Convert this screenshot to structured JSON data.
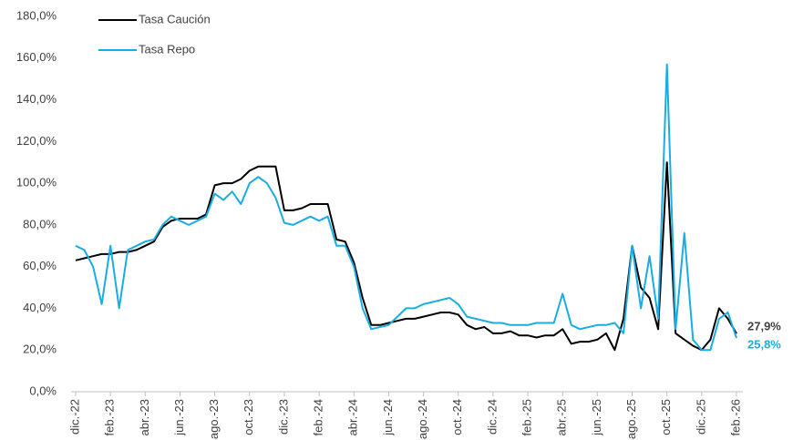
{
  "chart_data": {
    "type": "line",
    "x": [
      "dic.-22",
      null,
      null,
      null,
      "feb.-23",
      null,
      null,
      null,
      "abr.-23",
      null,
      null,
      null,
      "jun.-23",
      null,
      null,
      null,
      "ago.-23",
      null,
      null,
      null,
      "oct.-23",
      null,
      null,
      null,
      "dic.-23",
      null,
      null,
      null,
      "feb.-24",
      null,
      null,
      null,
      "abr.-24",
      null,
      null,
      null,
      "jun.-24",
      null,
      null,
      null,
      "ago.-24",
      null,
      null,
      null,
      "oct.-24",
      null,
      null,
      null,
      "dic.-24",
      null,
      null,
      null,
      "feb.-25",
      null,
      null,
      null,
      "abr.-25",
      null,
      null,
      null,
      "jun.-25",
      null,
      null,
      null,
      "ago.-25",
      null,
      null,
      null,
      "oct.-25",
      null,
      null,
      null,
      "dic.-25",
      null,
      null,
      null,
      "feb.-26"
    ],
    "series": [
      {
        "name": "Tasa Caución",
        "color": "#000000",
        "values": [
          63,
          64,
          65,
          66,
          66,
          67,
          67,
          68,
          70,
          72,
          79,
          82,
          83,
          83,
          83,
          85,
          99,
          100,
          100,
          102,
          106,
          108,
          108,
          108,
          87,
          87,
          88,
          90,
          90,
          90,
          73,
          72,
          62,
          45,
          32,
          32,
          33,
          34,
          35,
          35,
          36,
          37,
          38,
          38,
          37,
          32,
          30,
          31,
          28,
          28,
          29,
          27,
          27,
          26,
          27,
          27,
          30,
          23,
          24,
          24,
          25,
          28,
          20,
          35,
          70,
          50,
          45,
          30,
          110,
          28,
          25,
          22,
          20,
          25,
          40,
          35,
          27.9
        ],
        "value_labels": [
          null,
          null,
          null,
          null,
          null,
          null,
          null,
          null,
          null,
          null,
          null,
          null,
          null,
          null,
          null,
          null,
          null,
          null,
          null,
          null,
          null,
          null,
          null,
          null,
          null,
          null,
          null,
          null,
          null,
          null,
          null,
          null,
          null,
          null,
          null,
          null,
          null,
          null,
          null,
          null,
          null,
          null,
          null,
          null,
          null,
          null,
          null,
          null,
          null,
          null,
          null,
          null,
          null,
          null,
          null,
          null,
          null,
          null,
          null,
          null,
          null,
          null,
          null,
          null,
          null,
          null,
          null,
          null,
          null,
          null,
          null,
          null,
          null,
          null,
          null,
          null,
          "27,9%"
        ]
      },
      {
        "name": "Tasa Repo",
        "color": "#19ade3",
        "values": [
          70,
          68,
          60,
          42,
          70,
          40,
          68,
          70,
          72,
          73,
          80,
          84,
          82,
          80,
          82,
          84,
          95,
          92,
          96,
          90,
          100,
          103,
          100,
          93,
          81,
          80,
          82,
          84,
          82,
          84,
          70,
          70,
          60,
          40,
          30,
          31,
          32,
          36,
          40,
          40,
          42,
          43,
          44,
          45,
          42,
          36,
          35,
          34,
          33,
          33,
          32,
          32,
          32,
          33,
          33,
          33,
          47,
          32,
          30,
          31,
          32,
          32,
          33,
          28,
          70,
          40,
          65,
          35,
          157,
          30,
          76,
          25,
          20,
          20,
          35,
          38,
          25.8
        ],
        "value_labels": [
          null,
          null,
          null,
          null,
          null,
          null,
          null,
          null,
          null,
          null,
          null,
          null,
          null,
          null,
          null,
          null,
          null,
          null,
          null,
          null,
          null,
          null,
          null,
          null,
          null,
          null,
          null,
          null,
          null,
          null,
          null,
          null,
          null,
          null,
          null,
          null,
          null,
          null,
          null,
          null,
          null,
          null,
          null,
          null,
          null,
          null,
          null,
          null,
          null,
          null,
          null,
          null,
          null,
          null,
          null,
          null,
          null,
          null,
          null,
          null,
          null,
          null,
          null,
          null,
          null,
          null,
          null,
          null,
          null,
          null,
          null,
          null,
          null,
          null,
          null,
          null,
          "25,8%"
        ]
      }
    ],
    "ylim": [
      0,
      180
    ],
    "yticks": [
      {
        "value": 0,
        "label": "0,0%"
      },
      {
        "value": 20,
        "label": "20,0%"
      },
      {
        "value": 40,
        "label": "40,0%"
      },
      {
        "value": 60,
        "label": "60,0%"
      },
      {
        "value": 80,
        "label": "80,0%"
      },
      {
        "value": 100,
        "label": "100,0%"
      },
      {
        "value": 120,
        "label": "120,0%"
      },
      {
        "value": 140,
        "label": "140,0%"
      },
      {
        "value": 160,
        "label": "160,0%"
      },
      {
        "value": 180,
        "label": "180,0%"
      }
    ],
    "grid": false,
    "legend": "top-left"
  }
}
